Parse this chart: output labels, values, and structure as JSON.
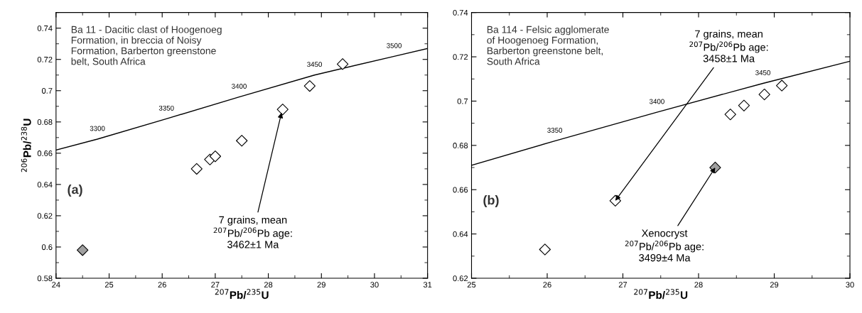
{
  "chart_data": [
    {
      "type": "scatter",
      "xlabel": "$^{207}$Pb/$^{235}$U",
      "ylabel": "$^{206}$Pb/$^{238}$U",
      "grid": false,
      "legend": false,
      "xlim": [
        24,
        31
      ],
      "xticks": [
        24,
        25,
        26,
        27,
        28,
        29,
        30,
        31
      ],
      "ylim": [
        0.58,
        0.75
      ],
      "yticks": [
        0.58,
        0.6,
        0.62,
        0.64,
        0.66,
        0.68,
        0.7,
        0.72,
        0.74
      ],
      "series": [
        {
          "type": "line",
          "color": "#000000",
          "x": [
            24,
            24.78,
            26.08,
            27.45,
            28.87,
            30.37,
            31
          ],
          "values": [
            0.662,
            0.669,
            0.682,
            0.696,
            0.71,
            0.722,
            0.727
          ]
        },
        {
          "color": "#ffffff",
          "marker": "diamond",
          "x": [
            26.65,
            26.9,
            27.0,
            27.5,
            28.27,
            28.78,
            29.4
          ],
          "values": [
            0.65,
            0.656,
            0.658,
            0.668,
            0.688,
            0.703,
            0.717
          ]
        },
        {
          "color": "#a0a0a0",
          "marker": "diamond",
          "x": [
            24.5
          ],
          "values": [
            0.598
          ]
        }
      ],
      "annotations": [
        "Ba 11 - Dacitic clast of Hoogenoeg\nFormation, in breccia of Noisy\nFormation, Barberton greenstone\nbelt, South Africa",
        "(a)",
        {
          "text": "3300",
          "x": 24.78,
          "y": 0.669
        },
        {
          "text": "3350",
          "x": 26.08,
          "y": 0.682
        },
        {
          "text": "3400",
          "x": 27.45,
          "y": 0.696
        },
        {
          "text": "3450",
          "x": 28.87,
          "y": 0.71
        },
        {
          "text": "3500",
          "x": 30.37,
          "y": 0.722
        },
        {
          "text": "7 grains, mean\n$^{207}$Pb/$^{206}$Pb age:\n3462±1 Ma",
          "x": 28.25,
          "y": 0.686
        }
      ]
    },
    {
      "type": "scatter",
      "xlabel": "$^{207}$Pb/$^{235}$U",
      "grid": false,
      "legend": false,
      "xlim": [
        25,
        30
      ],
      "xticks": [
        25,
        26,
        27,
        28,
        29,
        30
      ],
      "ylim": [
        0.62,
        0.74
      ],
      "yticks": [
        0.62,
        0.64,
        0.66,
        0.68,
        0.7,
        0.72,
        0.74
      ],
      "series": [
        {
          "type": "line",
          "color": "#000000",
          "x": [
            25,
            26.1,
            27.45,
            28.85,
            30
          ],
          "values": [
            0.671,
            0.682,
            0.695,
            0.708,
            0.718
          ]
        },
        {
          "color": "#ffffff",
          "marker": "diamond",
          "x": [
            25.97,
            26.9,
            28.42,
            28.6,
            28.87,
            29.1
          ],
          "values": [
            0.633,
            0.655,
            0.694,
            0.698,
            0.703,
            0.707
          ]
        },
        {
          "color": "#a0a0a0",
          "marker": "diamond",
          "x": [
            28.22
          ],
          "values": [
            0.67
          ]
        }
      ],
      "annotations": [
        "Ba 114 - Felsic agglomerate\nof Hoogenoeg Formation,\nBarberton greenstone belt,\nSouth Africa",
        "(b)",
        {
          "text": "3350",
          "x": 26.1,
          "y": 0.682
        },
        {
          "text": "3400",
          "x": 27.45,
          "y": 0.695
        },
        {
          "text": "3450",
          "x": 28.85,
          "y": 0.708
        },
        {
          "text": "7 grains, mean\n$^{207}$Pb/$^{206}$Pb age:\n3458±1 Ma",
          "x": 26.9,
          "y": 0.655
        },
        {
          "text": "Xenocryst\n$^{207}$Pb/$^{206}$Pb age:\n3499±4 Ma",
          "x": 28.22,
          "y": 0.67
        }
      ]
    }
  ]
}
